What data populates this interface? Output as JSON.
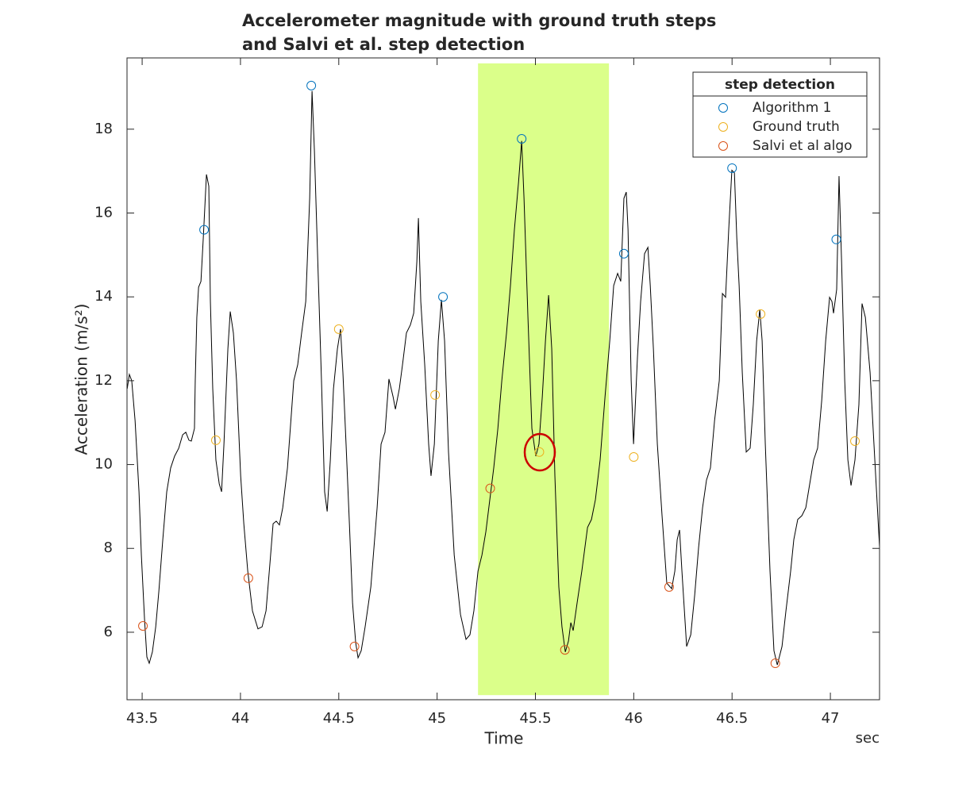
{
  "chart_data": {
    "type": "line",
    "title": [
      "Accelerometer magnitude with ground truth steps",
      "and Salvi et al. step detection"
    ],
    "x_label": "Time",
    "x_unit": "sec",
    "y_label": "Acceleration (m/s²)",
    "xlim": [
      43.423,
      47.25
    ],
    "ylim": [
      4.39,
      19.7
    ],
    "xticks": [
      43.5,
      44,
      44.5,
      45,
      45.5,
      46,
      46.5,
      47
    ],
    "yticks": [
      6,
      8,
      10,
      12,
      14,
      16,
      18
    ],
    "grid": false,
    "highlight": {
      "x": [
        45.208,
        45.874
      ],
      "y": [
        4.5,
        19.57
      ],
      "color": "#dbff8a"
    },
    "signal": {
      "color": "#000000",
      "x": [
        43.424,
        43.435,
        43.447,
        43.464,
        43.484,
        43.496,
        43.512,
        43.524,
        43.536,
        43.552,
        43.569,
        43.585,
        43.605,
        43.625,
        43.645,
        43.665,
        43.686,
        43.706,
        43.722,
        43.738,
        43.75,
        43.766,
        43.77,
        43.778,
        43.787,
        43.799,
        43.811,
        43.827,
        43.839,
        43.847,
        43.859,
        43.875,
        43.892,
        43.904,
        43.916,
        43.936,
        43.948,
        43.964,
        43.98,
        44.001,
        44.017,
        44.037,
        44.061,
        44.089,
        44.11,
        44.13,
        44.15,
        44.166,
        44.182,
        44.198,
        44.215,
        44.239,
        44.271,
        44.291,
        44.311,
        44.332,
        44.352,
        44.364,
        44.376,
        44.392,
        44.412,
        44.428,
        44.441,
        44.457,
        44.473,
        44.493,
        44.509,
        44.521,
        44.537,
        44.554,
        44.57,
        44.586,
        44.598,
        44.614,
        44.634,
        44.663,
        44.695,
        44.715,
        44.735,
        44.755,
        44.776,
        44.788,
        44.808,
        44.824,
        44.844,
        44.864,
        44.881,
        44.897,
        44.905,
        44.917,
        44.937,
        44.957,
        44.969,
        44.986,
        45.006,
        45.022,
        45.038,
        45.058,
        45.087,
        45.119,
        45.147,
        45.167,
        45.187,
        45.208,
        45.228,
        45.248,
        45.268,
        45.288,
        45.309,
        45.329,
        45.353,
        45.373,
        45.393,
        45.414,
        45.43,
        45.442,
        45.462,
        45.482,
        45.502,
        45.518,
        45.535,
        45.551,
        45.567,
        45.583,
        45.599,
        45.619,
        45.635,
        45.652,
        45.668,
        45.68,
        45.692,
        45.712,
        45.736,
        45.765,
        45.785,
        45.805,
        45.829,
        45.854,
        45.878,
        45.898,
        45.918,
        45.934,
        45.95,
        45.962,
        45.971,
        45.987,
        45.999,
        46.019,
        46.035,
        46.055,
        46.072,
        46.084,
        46.1,
        46.12,
        46.144,
        46.168,
        46.193,
        46.209,
        46.221,
        46.233,
        46.245,
        46.269,
        46.29,
        46.31,
        46.33,
        46.35,
        46.37,
        46.39,
        46.411,
        46.435,
        46.451,
        46.467,
        46.483,
        46.499,
        46.512,
        46.524,
        46.536,
        46.552,
        46.572,
        46.592,
        46.608,
        46.625,
        46.641,
        46.653,
        46.669,
        46.693,
        46.713,
        46.73,
        46.754,
        46.774,
        46.798,
        46.814,
        46.834,
        46.855,
        46.875,
        46.895,
        46.915,
        46.935,
        46.956,
        46.976,
        46.996,
        47.008,
        47.016,
        47.032,
        47.044,
        47.057,
        47.073,
        47.089,
        47.105,
        47.125,
        47.145,
        47.161,
        47.178,
        47.202,
        47.226,
        47.25
      ],
      "values": [
        11.81,
        12.15,
        12.0,
        11.05,
        9.35,
        7.84,
        6.32,
        5.41,
        5.26,
        5.53,
        6.13,
        6.98,
        8.21,
        9.35,
        9.92,
        10.2,
        10.39,
        10.71,
        10.77,
        10.58,
        10.56,
        10.86,
        12.0,
        13.51,
        14.23,
        14.37,
        15.41,
        16.92,
        16.64,
        13.89,
        11.81,
        10.11,
        9.54,
        9.35,
        10.49,
        12.76,
        13.65,
        13.14,
        12.0,
        9.73,
        8.59,
        7.46,
        6.51,
        6.08,
        6.13,
        6.51,
        7.65,
        8.59,
        8.65,
        8.56,
        8.97,
        9.92,
        12.0,
        12.38,
        13.14,
        13.89,
        16.35,
        18.91,
        17.49,
        15.03,
        12.0,
        9.35,
        8.88,
        10.11,
        11.81,
        12.76,
        13.23,
        12.19,
        10.49,
        8.59,
        6.7,
        5.75,
        5.39,
        5.56,
        6.13,
        7.08,
        8.97,
        10.49,
        10.77,
        12.04,
        11.62,
        11.32,
        11.81,
        12.38,
        13.14,
        13.33,
        13.61,
        14.84,
        15.88,
        13.89,
        12.38,
        10.49,
        9.73,
        10.49,
        12.95,
        13.93,
        12.95,
        10.3,
        7.84,
        6.42,
        5.83,
        5.94,
        6.51,
        7.46,
        7.84,
        8.4,
        9.16,
        9.92,
        10.86,
        12.0,
        13.14,
        14.27,
        15.6,
        16.73,
        17.72,
        16.35,
        13.51,
        10.86,
        10.2,
        10.49,
        11.62,
        12.95,
        14.04,
        12.76,
        9.73,
        7.08,
        6.13,
        5.53,
        5.79,
        6.23,
        6.04,
        6.7,
        7.46,
        8.5,
        8.69,
        9.16,
        10.11,
        11.62,
        12.95,
        14.27,
        14.56,
        14.37,
        16.35,
        16.5,
        15.6,
        12.0,
        10.49,
        12.57,
        13.89,
        15.03,
        15.18,
        14.27,
        12.76,
        10.49,
        8.78,
        7.17,
        7.04,
        7.46,
        8.21,
        8.44,
        7.46,
        5.66,
        5.94,
        6.89,
        8.03,
        8.97,
        9.63,
        9.92,
        11.05,
        12.0,
        14.08,
        13.99,
        15.6,
        17.02,
        16.96,
        15.41,
        14.27,
        12.19,
        10.3,
        10.39,
        11.43,
        12.95,
        13.7,
        12.95,
        10.49,
        7.46,
        5.56,
        5.22,
        5.66,
        6.51,
        7.46,
        8.21,
        8.69,
        8.78,
        8.97,
        9.54,
        10.11,
        10.39,
        11.53,
        12.95,
        13.99,
        13.89,
        13.61,
        14.18,
        16.88,
        14.84,
        12.0,
        10.11,
        9.5,
        10.11,
        11.43,
        13.84,
        13.51,
        12.19,
        10.11,
        8.03
      ]
    },
    "legend": {
      "title": "step detection",
      "location": "northeast"
    },
    "series": [
      {
        "name": "Algorithm 1",
        "color": "#0072BD",
        "x": [
          43.815,
          44.36,
          45.03,
          45.43,
          45.95,
          46.5,
          47.03
        ],
        "values": [
          15.6,
          19.04,
          14.0,
          17.77,
          15.03,
          17.07,
          15.37
        ]
      },
      {
        "name": "Ground truth",
        "color": "#EDB120",
        "x": [
          43.875,
          44.5,
          44.99,
          45.52,
          46.0,
          46.645,
          47.125
        ],
        "values": [
          10.58,
          13.23,
          11.66,
          10.3,
          10.18,
          13.59,
          10.56
        ]
      },
      {
        "name": "Salvi et al algo",
        "color": "#D95319",
        "x": [
          43.504,
          44.04,
          44.58,
          45.27,
          45.65,
          46.18,
          46.72
        ],
        "values": [
          6.15,
          7.29,
          5.66,
          9.43,
          5.58,
          7.08,
          5.26
        ]
      }
    ]
  }
}
